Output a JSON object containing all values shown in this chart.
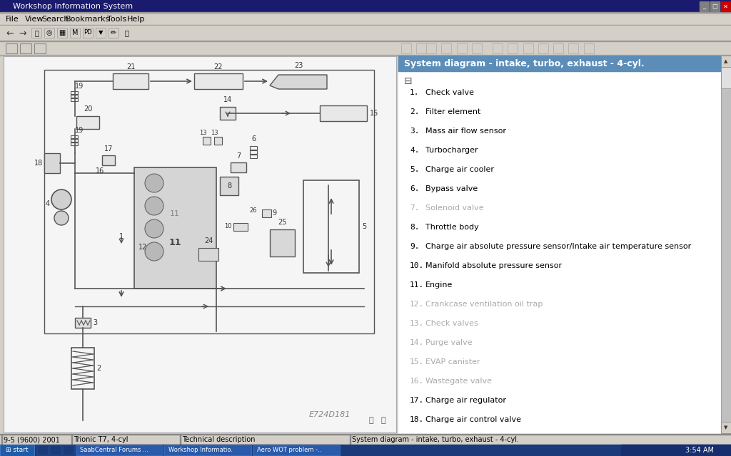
{
  "title_bar": "Workshop Information System",
  "menu_items": [
    "File",
    "View",
    "Search",
    "Bookmarks",
    "Tools",
    "Help"
  ],
  "menu_x": [
    8,
    35,
    58,
    92,
    150,
    178,
    202
  ],
  "panel_title": "System diagram - intake, turbo, exhaust - 4-cyl.",
  "panel_title_bg": "#5b8db8",
  "panel_title_color": "#ffffff",
  "legend_items": [
    {
      "num": "1.",
      "text": "Check valve",
      "active": true
    },
    {
      "num": "2.",
      "text": "Filter element",
      "active": true
    },
    {
      "num": "3.",
      "text": "Mass air flow sensor",
      "active": true
    },
    {
      "num": "4.",
      "text": "Turbocharger",
      "active": true
    },
    {
      "num": "5.",
      "text": "Charge air cooler",
      "active": true
    },
    {
      "num": "6.",
      "text": "Bypass valve",
      "active": true
    },
    {
      "num": "7.",
      "text": "Solenoid valve",
      "active": false
    },
    {
      "num": "8.",
      "text": "Throttle body",
      "active": true
    },
    {
      "num": "9.",
      "text": "Charge air absolute pressure sensor/Intake air temperature sensor",
      "active": true
    },
    {
      "num": "10.",
      "text": "Manifold absolute pressure sensor",
      "active": true
    },
    {
      "num": "11.",
      "text": "Engine",
      "active": true
    },
    {
      "num": "12.",
      "text": "Crankcase ventilation oil trap",
      "active": false
    },
    {
      "num": "13.",
      "text": "Check valves",
      "active": false
    },
    {
      "num": "14.",
      "text": "Purge valve",
      "active": false
    },
    {
      "num": "15.",
      "text": "EVAP canister",
      "active": false
    },
    {
      "num": "16.",
      "text": "Wastegate valve",
      "active": false
    },
    {
      "num": "17.",
      "text": "Charge air regulator",
      "active": true
    },
    {
      "num": "18.",
      "text": "Charge air control valve",
      "active": true
    }
  ],
  "status_bar_left": "9-5 (9600) 2001",
  "status_bar_mid1": "Trionic T7, 4-cyl",
  "status_bar_mid2": "Technical description",
  "status_bar_right": "System diagram - intake, turbo, exhaust - 4-cyl.",
  "bg_color": "#d4d0c8",
  "win_title_bg": "#1a1a6e",
  "win_title_color": "#ffffff",
  "taskbar_bg": "#1a3a7a",
  "watermark": "E724D181"
}
